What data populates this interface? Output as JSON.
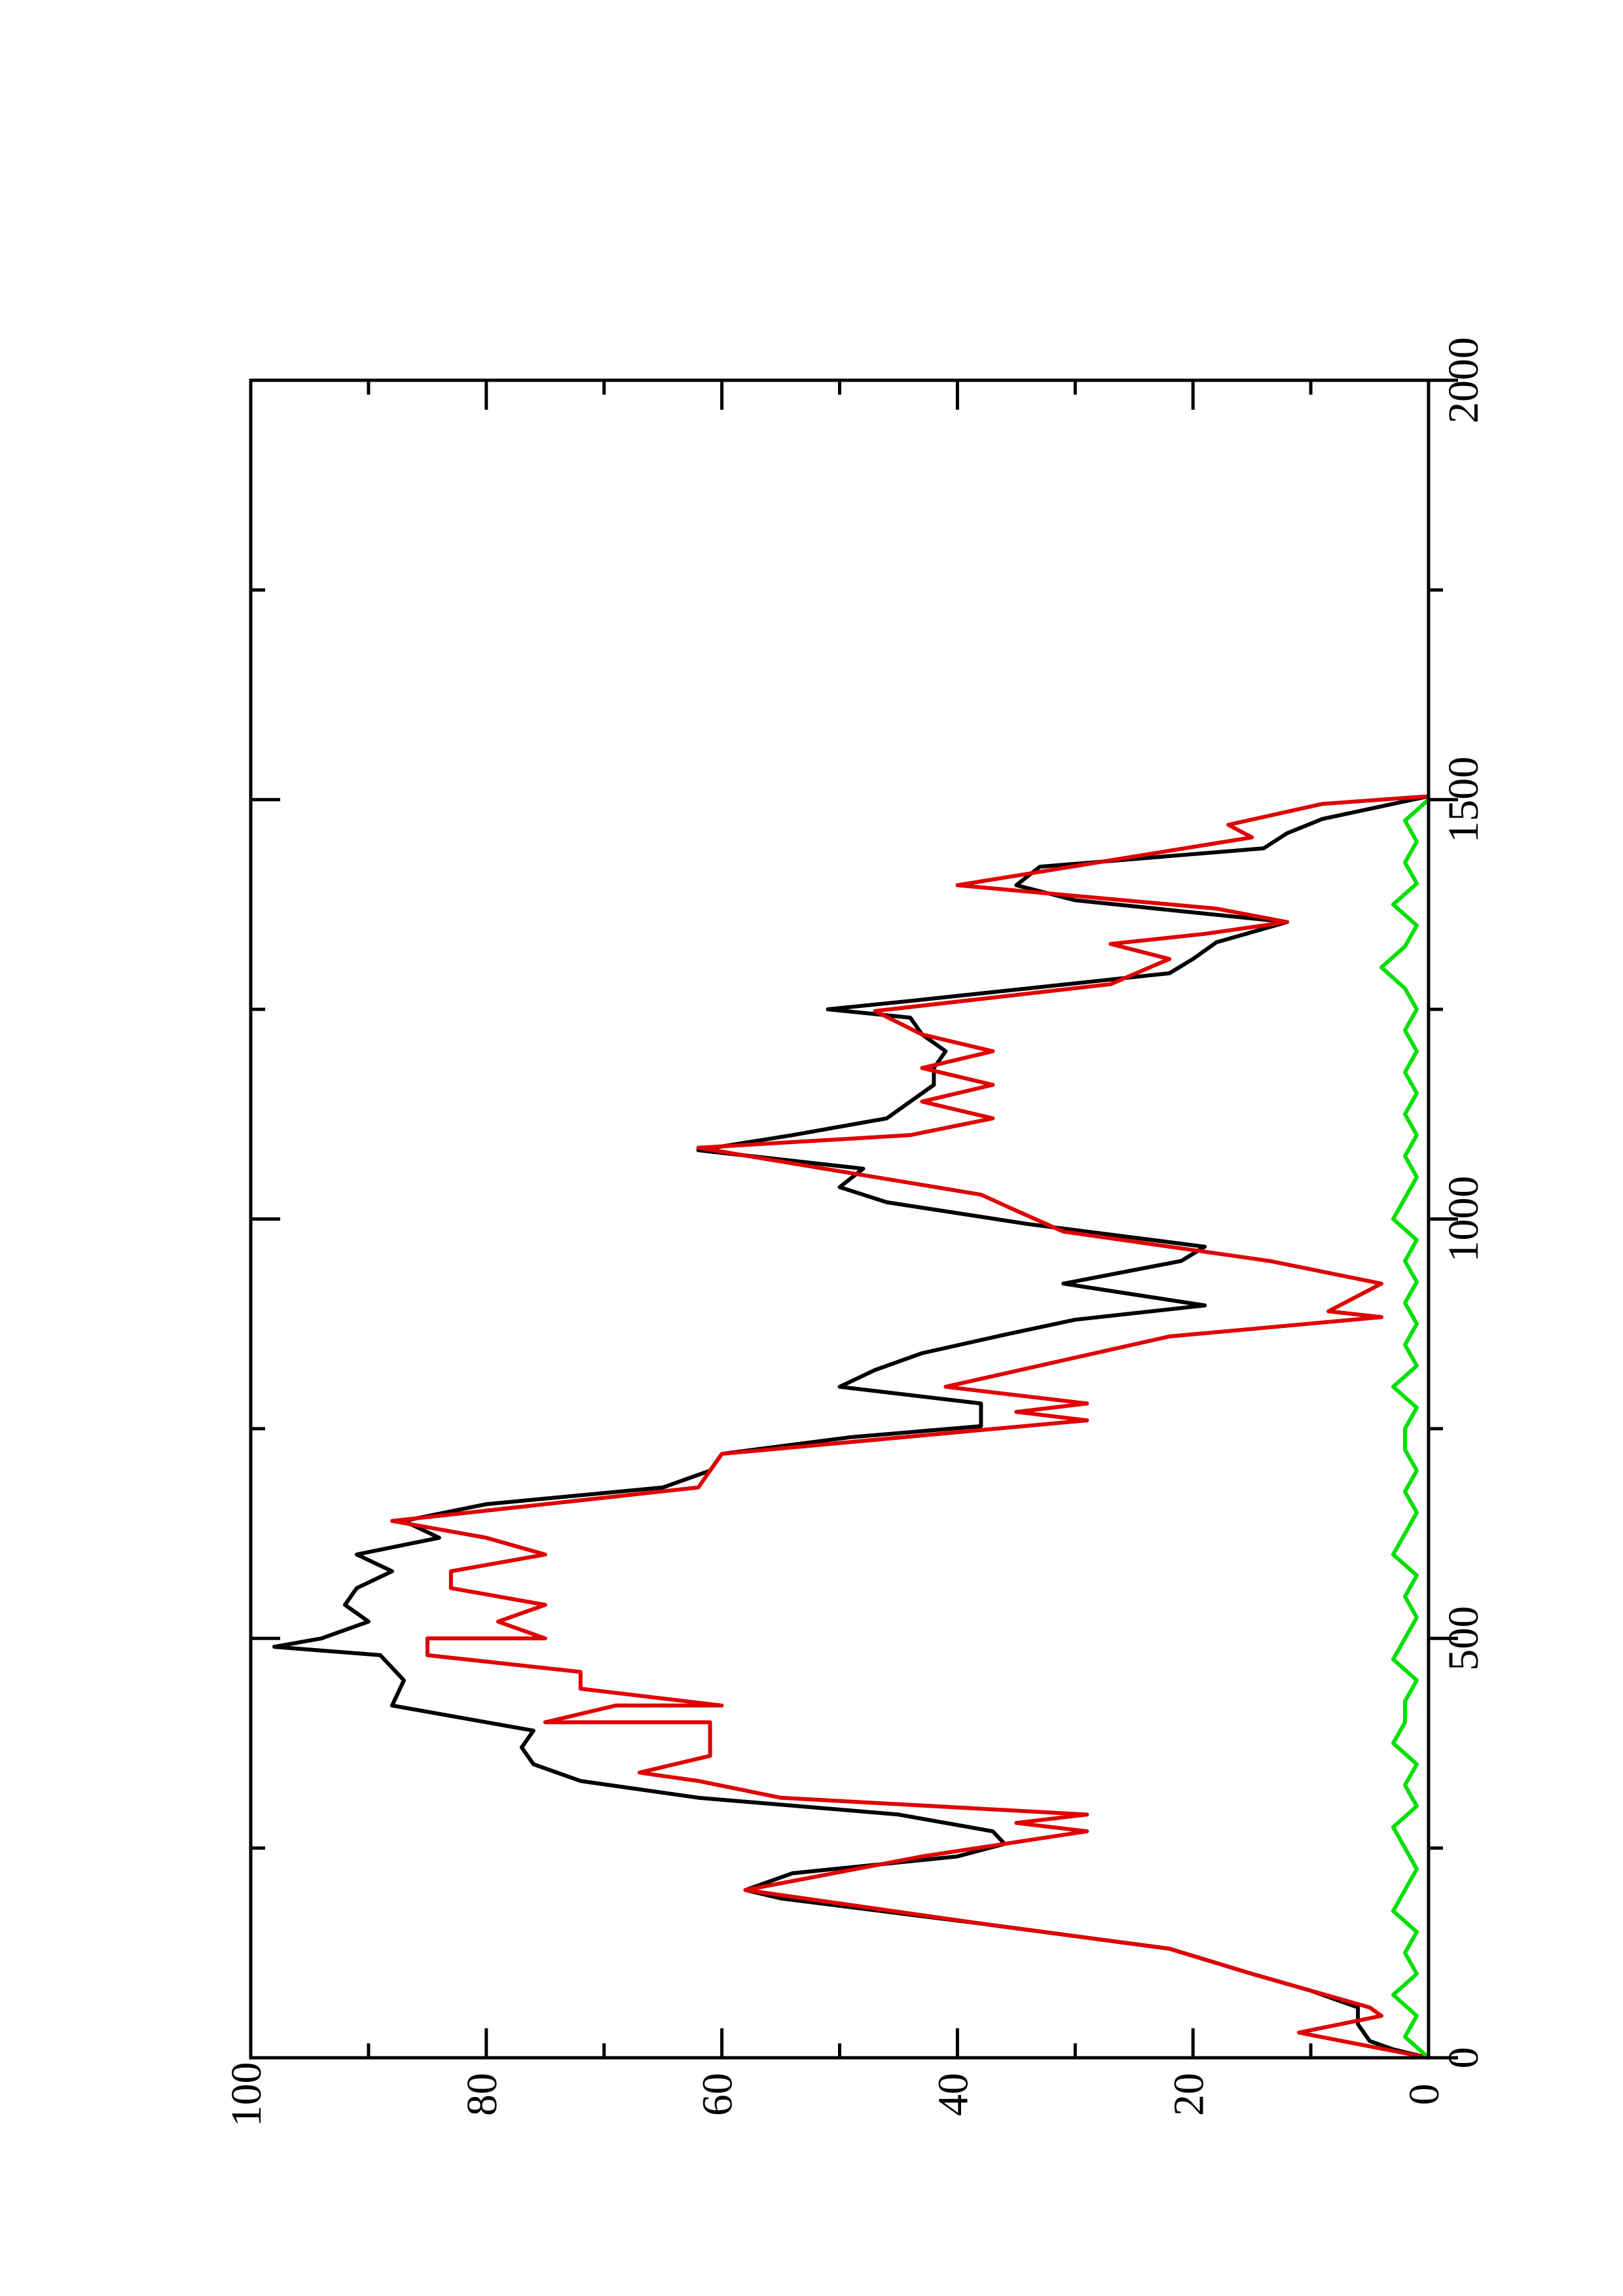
{
  "chart_data": {
    "type": "line",
    "xlim": [
      0,
      2000
    ],
    "xticks": [
      0,
      500,
      1000,
      1500,
      2000
    ],
    "x_minor_ticks": [
      250,
      750,
      1250,
      1750
    ],
    "ylim": [
      0,
      100
    ],
    "yticks": [
      0,
      20,
      40,
      60,
      80,
      100
    ],
    "y_minor_ticks": [
      10,
      30,
      50,
      70,
      90
    ],
    "rotated": true,
    "series": [
      {
        "color": "#000000",
        "x": [
          0,
          10,
          20,
          40,
          60,
          80,
          100,
          130,
          160,
          190,
          200,
          220,
          240,
          255,
          270,
          290,
          310,
          330,
          350,
          370,
          390,
          420,
          450,
          480,
          490,
          500,
          520,
          540,
          560,
          580,
          600,
          620,
          640,
          660,
          680,
          700,
          720,
          740,
          753,
          780,
          800,
          820,
          840,
          862,
          880,
          897,
          923,
          950,
          967,
          994,
          1020,
          1038,
          1060,
          1082,
          1100,
          1120,
          1140,
          1160,
          1180,
          1200,
          1220,
          1240,
          1250,
          1260,
          1275,
          1293,
          1310,
          1330,
          1354,
          1380,
          1398,
          1420,
          1442,
          1460,
          1477,
          1504
        ],
        "values": [
          0,
          3,
          5,
          6,
          6,
          10,
          15,
          22,
          38,
          55,
          58,
          54,
          40,
          36,
          37,
          45,
          62,
          72,
          76,
          77,
          76,
          88,
          87,
          89,
          98,
          94,
          90,
          92,
          91,
          88,
          91,
          84,
          87,
          80,
          65,
          61,
          60,
          49,
          38,
          38,
          50,
          47,
          43,
          36,
          30,
          19,
          31,
          21,
          19,
          34,
          46,
          50,
          48,
          62,
          54,
          46,
          44,
          42,
          42,
          41,
          43,
          44,
          51,
          44,
          34,
          22,
          20,
          18,
          12,
          30,
          35,
          33,
          14,
          12,
          9,
          0
        ]
      },
      {
        "color": "#e00000",
        "x": [
          0,
          30,
          50,
          60,
          80,
          100,
          130,
          160,
          200,
          240,
          270,
          280,
          290,
          310,
          330,
          340,
          360,
          400,
          400,
          420,
          420,
          440,
          460,
          480,
          500,
          500,
          520,
          540,
          560,
          580,
          600,
          620,
          640,
          660,
          680,
          720,
          760,
          770,
          780,
          800,
          860,
          883,
          890,
          923,
          950,
          985,
          1010,
          1029,
          1085,
          1100,
          1120,
          1140,
          1160,
          1180,
          1200,
          1220,
          1248,
          1280,
          1310,
          1328,
          1340,
          1354,
          1370,
          1398,
          1455,
          1470,
          1495,
          1504
        ],
        "values": [
          0,
          11,
          4,
          5,
          10,
          15,
          22,
          38,
          58,
          43,
          29,
          35,
          29,
          55,
          62,
          67,
          61,
          61,
          75,
          69,
          60,
          72,
          72,
          85,
          85,
          75,
          79,
          75,
          83,
          83,
          75,
          80,
          88,
          75,
          62,
          60,
          29,
          35,
          29,
          41,
          22,
          4,
          8.5,
          4,
          13.5,
          31,
          35,
          38,
          62,
          44,
          37,
          43,
          37,
          43,
          37,
          43,
          47,
          27,
          22,
          27,
          19,
          12,
          18,
          40,
          15,
          17,
          9,
          0
        ]
      },
      {
        "color": "#00e000",
        "x": [
          0,
          25,
          50,
          75,
          100,
          125,
          150,
          175,
          200,
          225,
          250,
          275,
          300,
          325,
          350,
          375,
          400,
          425,
          450,
          475,
          500,
          525,
          550,
          575,
          600,
          625,
          650,
          675,
          700,
          725,
          750,
          775,
          800,
          825,
          850,
          875,
          900,
          925,
          950,
          975,
          1000,
          1025,
          1050,
          1075,
          1100,
          1125,
          1150,
          1175,
          1200,
          1225,
          1250,
          1275,
          1300,
          1325,
          1350,
          1375,
          1400,
          1425,
          1450,
          1475,
          1500
        ],
        "values": [
          0,
          2,
          1,
          3,
          1,
          2,
          1,
          3,
          2,
          1,
          2,
          3,
          1,
          2,
          1,
          3,
          2,
          2,
          1,
          3,
          2,
          1,
          2,
          1,
          3,
          2,
          1,
          2,
          1,
          2,
          2,
          1,
          3,
          1,
          2,
          1,
          2,
          1,
          2,
          1,
          3,
          2,
          1,
          2,
          1,
          2,
          1,
          2,
          1,
          2,
          1,
          2,
          4,
          2,
          1,
          3,
          1,
          2,
          1,
          2,
          0
        ]
      }
    ]
  }
}
